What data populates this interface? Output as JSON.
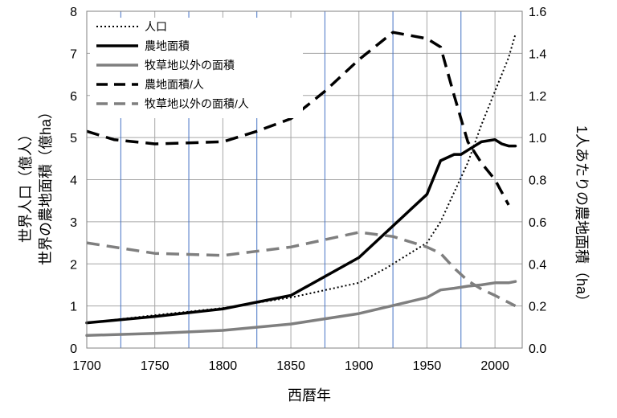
{
  "chart_data": {
    "type": "line",
    "title": "",
    "xlabel": "西暦年",
    "ylabel_left_1": "世界人口（億人）",
    "ylabel_left_2": "世界の農地面積（億ha）",
    "ylabel_right": "1人あたりの農地面積（ha）",
    "xlim": [
      1700,
      2020
    ],
    "ylim_left": [
      0,
      8
    ],
    "ylim_right": [
      0,
      1.6
    ],
    "x_ticks": [
      "1700",
      "1750",
      "1800",
      "1850",
      "1900",
      "1950",
      "2000"
    ],
    "x_tick_values": [
      1700,
      1750,
      1800,
      1850,
      1900,
      1950,
      2000
    ],
    "y_left_ticks": [
      "0",
      "1",
      "2",
      "3",
      "4",
      "5",
      "6",
      "7",
      "8"
    ],
    "y_left_tick_values": [
      0,
      1,
      2,
      3,
      4,
      5,
      6,
      7,
      8
    ],
    "y_right_ticks": [
      "0.0",
      "0.2",
      "0.4",
      "0.6",
      "0.8",
      "1.0",
      "1.2",
      "1.4",
      "1.6"
    ],
    "y_right_tick_values": [
      0,
      0.2,
      0.4,
      0.6,
      0.8,
      1.0,
      1.2,
      1.4,
      1.6
    ],
    "grid": true,
    "vertical_lines_x": [
      1725,
      1775,
      1825,
      1875,
      1925,
      1975
    ],
    "vertical_line_color": "#4472C4",
    "legend_position": "top-left",
    "series": [
      {
        "name": "人口",
        "axis": "left",
        "style": "dotted",
        "color": "#000000",
        "x": [
          1700,
          1750,
          1800,
          1850,
          1900,
          1920,
          1940,
          1950,
          1960,
          1970,
          1980,
          1990,
          2000,
          2010,
          2015
        ],
        "y": [
          0.6,
          0.78,
          0.95,
          1.2,
          1.55,
          1.9,
          2.3,
          2.5,
          3.0,
          3.7,
          4.4,
          5.3,
          6.1,
          6.9,
          7.45
        ]
      },
      {
        "name": "農地面積",
        "axis": "left",
        "style": "solid",
        "color": "#000000",
        "x": [
          1700,
          1750,
          1800,
          1850,
          1900,
          1950,
          1960,
          1970,
          1975,
          1980,
          1990,
          2000,
          2005,
          2010,
          2015
        ],
        "y": [
          0.6,
          0.75,
          0.93,
          1.25,
          2.15,
          3.65,
          4.45,
          4.6,
          4.6,
          4.7,
          4.9,
          4.95,
          4.85,
          4.8,
          4.8
        ]
      },
      {
        "name": "牧草地以外の面積",
        "axis": "left",
        "style": "solid",
        "color": "#7F7F7F",
        "x": [
          1700,
          1750,
          1800,
          1850,
          1900,
          1950,
          1960,
          1970,
          1980,
          1990,
          2000,
          2010,
          2015
        ],
        "y": [
          0.3,
          0.35,
          0.42,
          0.57,
          0.82,
          1.2,
          1.38,
          1.42,
          1.47,
          1.5,
          1.55,
          1.55,
          1.58
        ]
      },
      {
        "name": "農地面積/人",
        "axis": "right",
        "style": "dashed",
        "color": "#000000",
        "x": [
          1700,
          1720,
          1750,
          1775,
          1800,
          1825,
          1850,
          1875,
          1900,
          1925,
          1950,
          1960,
          1970,
          1980,
          1990,
          2000,
          2010
        ],
        "y": [
          1.03,
          0.99,
          0.97,
          0.975,
          0.98,
          1.03,
          1.09,
          1.22,
          1.37,
          1.5,
          1.47,
          1.43,
          1.2,
          0.98,
          0.88,
          0.8,
          0.68
        ]
      },
      {
        "name": "牧草地以外の面積/人",
        "axis": "right",
        "style": "dashed",
        "color": "#7F7F7F",
        "x": [
          1700,
          1750,
          1800,
          1850,
          1900,
          1925,
          1950,
          1960,
          1970,
          1980,
          1990,
          2000,
          2015
        ],
        "y": [
          0.5,
          0.45,
          0.44,
          0.48,
          0.55,
          0.53,
          0.48,
          0.45,
          0.38,
          0.32,
          0.28,
          0.25,
          0.2
        ]
      }
    ]
  }
}
